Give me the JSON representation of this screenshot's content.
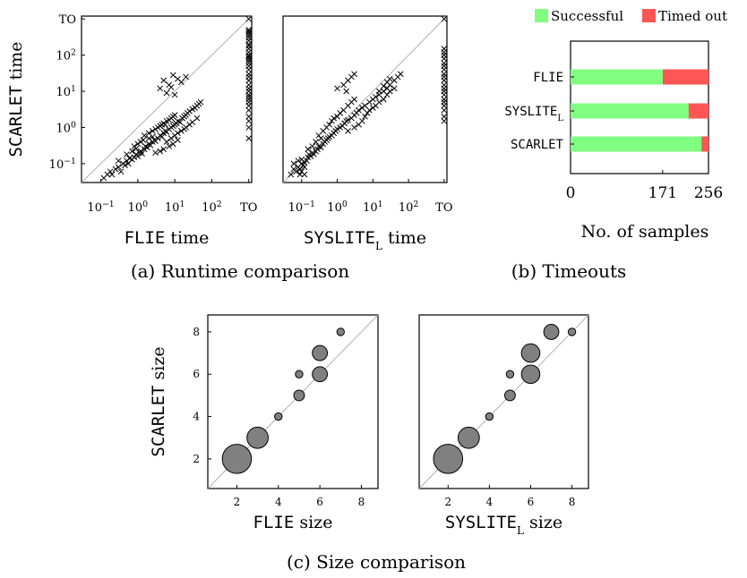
{
  "caption_a": "(a) Runtime comparison",
  "caption_b": "(b) Timeouts",
  "caption_c": "(c) Size comparison",
  "chart_data": [
    {
      "id": "runtime_flie",
      "type": "scatter",
      "xscale": "log",
      "yscale": "log",
      "xlim": [
        0.03,
        1200
      ],
      "ylim": [
        0.03,
        1200
      ],
      "xticks": [
        0.1,
        1,
        10,
        100,
        1000
      ],
      "xtick_labels": [
        "10^-1",
        "10^0",
        "10^1",
        "10^2",
        "TO"
      ],
      "yticks": [
        0.1,
        1,
        10,
        100,
        1000
      ],
      "ytick_labels": [
        "10^-1",
        "10^0",
        "10^1",
        "10^2",
        "TO"
      ],
      "xlabel": {
        "mono": "FLIE",
        "sub": "",
        "rest": " time"
      },
      "ylabel": {
        "mono": "SCARLET",
        "sub": "",
        "rest": " time"
      },
      "diagonal": true,
      "marker": "x",
      "points": [
        [
          0.12,
          0.04
        ],
        [
          0.15,
          0.05
        ],
        [
          0.18,
          0.06
        ],
        [
          0.2,
          0.05
        ],
        [
          0.25,
          0.07
        ],
        [
          0.3,
          0.08
        ],
        [
          0.35,
          0.06
        ],
        [
          0.4,
          0.1
        ],
        [
          0.45,
          0.09
        ],
        [
          0.5,
          0.12
        ],
        [
          0.55,
          0.1
        ],
        [
          0.6,
          0.14
        ],
        [
          0.7,
          0.13
        ],
        [
          0.8,
          0.15
        ],
        [
          0.9,
          0.18
        ],
        [
          1.0,
          0.16
        ],
        [
          1.1,
          0.2
        ],
        [
          1.2,
          0.22
        ],
        [
          1.3,
          0.19
        ],
        [
          1.5,
          0.25
        ],
        [
          1.6,
          0.3
        ],
        [
          1.8,
          0.28
        ],
        [
          2.0,
          0.35
        ],
        [
          2.2,
          0.32
        ],
        [
          2.5,
          0.4
        ],
        [
          2.8,
          0.45
        ],
        [
          3.0,
          0.42
        ],
        [
          3.5,
          0.5
        ],
        [
          4.0,
          0.6
        ],
        [
          4.5,
          0.55
        ],
        [
          5.0,
          0.7
        ],
        [
          5.5,
          0.8
        ],
        [
          6.0,
          0.75
        ],
        [
          7.0,
          0.9
        ],
        [
          8.0,
          1.0
        ],
        [
          9.0,
          1.1
        ],
        [
          10,
          1.2
        ],
        [
          11,
          1.3
        ],
        [
          12,
          1.5
        ],
        [
          14,
          1.4
        ],
        [
          16,
          1.8
        ],
        [
          18,
          2.0
        ],
        [
          20,
          2.2
        ],
        [
          22,
          2.5
        ],
        [
          25,
          2.8
        ],
        [
          30,
          3.2
        ],
        [
          35,
          3.5
        ],
        [
          40,
          4.0
        ],
        [
          45,
          4.5
        ],
        [
          50,
          5.0
        ],
        [
          1.5,
          0.6
        ],
        [
          2.0,
          0.7
        ],
        [
          2.5,
          0.8
        ],
        [
          3.0,
          0.9
        ],
        [
          3.5,
          1.0
        ],
        [
          4.0,
          1.1
        ],
        [
          4.5,
          1.2
        ],
        [
          5.0,
          1.3
        ],
        [
          5.5,
          1.2
        ],
        [
          6.0,
          1.5
        ],
        [
          7.0,
          1.6
        ],
        [
          8.0,
          1.8
        ],
        [
          9.0,
          2.0
        ],
        [
          10,
          2.2
        ],
        [
          0.8,
          0.3
        ],
        [
          1.0,
          0.35
        ],
        [
          1.2,
          0.4
        ],
        [
          1.4,
          0.45
        ],
        [
          2.0,
          0.5
        ],
        [
          2.5,
          0.55
        ],
        [
          6.0,
          0.4
        ],
        [
          8.0,
          0.5
        ],
        [
          10,
          0.6
        ],
        [
          12,
          0.7
        ],
        [
          15,
          0.8
        ],
        [
          18,
          0.9
        ],
        [
          20,
          1.0
        ],
        [
          25,
          1.2
        ],
        [
          30,
          1.4
        ],
        [
          40,
          1.8
        ],
        [
          5.0,
          0.25
        ],
        [
          7.0,
          0.3
        ],
        [
          9.0,
          0.35
        ],
        [
          12,
          0.45
        ],
        [
          3.0,
          0.2
        ],
        [
          4.0,
          0.22
        ],
        [
          0.3,
          0.12
        ],
        [
          0.5,
          0.18
        ],
        [
          0.7,
          0.22
        ],
        [
          0.9,
          0.26
        ],
        [
          5.0,
          20
        ],
        [
          7.0,
          15
        ],
        [
          9.0,
          28
        ],
        [
          12,
          22
        ],
        [
          4.0,
          12
        ],
        [
          6.0,
          9
        ],
        [
          8.0,
          13
        ],
        [
          15,
          18
        ],
        [
          20,
          25
        ],
        [
          10,
          8
        ],
        [
          1000,
          0.5
        ],
        [
          1000,
          1.0
        ],
        [
          1000,
          1.5
        ],
        [
          1000,
          2.0
        ],
        [
          1000,
          3.0
        ],
        [
          1000,
          4.0
        ],
        [
          1000,
          5.0
        ],
        [
          1000,
          6.0
        ],
        [
          1000,
          7.0
        ],
        [
          1000,
          8.0
        ],
        [
          1000,
          10
        ],
        [
          1000,
          12
        ],
        [
          1000,
          15
        ],
        [
          1000,
          20
        ],
        [
          1000,
          25
        ],
        [
          1000,
          30
        ],
        [
          1000,
          40
        ],
        [
          1000,
          50
        ],
        [
          1000,
          60
        ],
        [
          1000,
          70
        ],
        [
          1000,
          80
        ],
        [
          1000,
          90
        ],
        [
          1000,
          100
        ],
        [
          1000,
          120
        ],
        [
          1000,
          150
        ],
        [
          1000,
          180
        ],
        [
          1000,
          200
        ],
        [
          1000,
          250
        ],
        [
          1000,
          300
        ],
        [
          1000,
          350
        ],
        [
          1000,
          400
        ],
        [
          1000,
          450
        ],
        [
          1000,
          500
        ],
        [
          1000,
          1000
        ]
      ]
    },
    {
      "id": "runtime_syslite",
      "type": "scatter",
      "xscale": "log",
      "yscale": "log",
      "xlim": [
        0.03,
        1200
      ],
      "ylim": [
        0.03,
        1200
      ],
      "xticks": [
        0.1,
        1,
        10,
        100,
        1000
      ],
      "xtick_labels": [
        "10^-1",
        "10^0",
        "10^1",
        "10^2",
        "TO"
      ],
      "yticks": [],
      "ytick_labels": [],
      "xlabel": {
        "mono": "SYSLITE",
        "sub": "L",
        "rest": " time"
      },
      "ylabel": null,
      "diagonal": true,
      "marker": "x",
      "points": [
        [
          0.05,
          0.05
        ],
        [
          0.06,
          0.07
        ],
        [
          0.07,
          0.06
        ],
        [
          0.08,
          0.08
        ],
        [
          0.09,
          0.07
        ],
        [
          0.1,
          0.1
        ],
        [
          0.11,
          0.09
        ],
        [
          0.12,
          0.11
        ],
        [
          0.06,
          0.1
        ],
        [
          0.08,
          0.12
        ],
        [
          0.1,
          0.13
        ],
        [
          0.12,
          0.08
        ],
        [
          0.14,
          0.12
        ],
        [
          0.15,
          0.15
        ],
        [
          0.16,
          0.18
        ],
        [
          0.18,
          0.16
        ],
        [
          0.2,
          0.2
        ],
        [
          0.22,
          0.18
        ],
        [
          0.25,
          0.22
        ],
        [
          0.28,
          0.25
        ],
        [
          0.3,
          0.3
        ],
        [
          0.35,
          0.28
        ],
        [
          0.4,
          0.35
        ],
        [
          0.45,
          0.4
        ],
        [
          0.5,
          0.45
        ],
        [
          0.55,
          0.5
        ],
        [
          0.6,
          0.55
        ],
        [
          0.7,
          0.6
        ],
        [
          0.8,
          0.7
        ],
        [
          0.9,
          0.8
        ],
        [
          1.0,
          0.9
        ],
        [
          1.2,
          1.0
        ],
        [
          1.4,
          1.1
        ],
        [
          1.6,
          1.3
        ],
        [
          1.8,
          1.5
        ],
        [
          2.0,
          1.6
        ],
        [
          2.5,
          1.8
        ],
        [
          3.0,
          2.2
        ],
        [
          3.5,
          2.5
        ],
        [
          4.0,
          3.0
        ],
        [
          0.5,
          1.0
        ],
        [
          0.6,
          1.2
        ],
        [
          0.7,
          1.5
        ],
        [
          0.8,
          1.8
        ],
        [
          1.0,
          2.0
        ],
        [
          1.2,
          2.5
        ],
        [
          1.5,
          3.0
        ],
        [
          2.0,
          4.0
        ],
        [
          2.5,
          5.0
        ],
        [
          3.0,
          6.0
        ],
        [
          0.3,
          0.6
        ],
        [
          0.4,
          0.8
        ],
        [
          0.35,
          0.5
        ],
        [
          0.25,
          0.4
        ],
        [
          0.2,
          0.3
        ],
        [
          0.15,
          0.25
        ],
        [
          2.0,
          0.8
        ],
        [
          3.0,
          1.0
        ],
        [
          4.0,
          1.2
        ],
        [
          5.0,
          1.5
        ],
        [
          6.0,
          2.0
        ],
        [
          7.0,
          2.5
        ],
        [
          8.0,
          3.0
        ],
        [
          10,
          3.5
        ],
        [
          12,
          4.0
        ],
        [
          15,
          5.0
        ],
        [
          5.0,
          3.5
        ],
        [
          6.0,
          4.0
        ],
        [
          8.0,
          5.0
        ],
        [
          10,
          6.0
        ],
        [
          12,
          7.0
        ],
        [
          15,
          8.0
        ],
        [
          20,
          10
        ],
        [
          25,
          12
        ],
        [
          30,
          15
        ],
        [
          40,
          20
        ],
        [
          50,
          25
        ],
        [
          60,
          30
        ],
        [
          20,
          6.0
        ],
        [
          25,
          8.0
        ],
        [
          30,
          10
        ],
        [
          40,
          12
        ],
        [
          15,
          10
        ],
        [
          20,
          14
        ],
        [
          25,
          18
        ],
        [
          30,
          22
        ],
        [
          1.5,
          15
        ],
        [
          2.0,
          20
        ],
        [
          2.5,
          25
        ],
        [
          3.0,
          30
        ],
        [
          1.0,
          12
        ],
        [
          1.8,
          10
        ],
        [
          0.1,
          0.06
        ],
        [
          0.12,
          0.05
        ],
        [
          0.09,
          0.05
        ],
        [
          1000,
          1.5
        ],
        [
          1000,
          2.0
        ],
        [
          1000,
          3.0
        ],
        [
          1000,
          4.0
        ],
        [
          1000,
          5.0
        ],
        [
          1000,
          6.0
        ],
        [
          1000,
          8.0
        ],
        [
          1000,
          10
        ],
        [
          1000,
          12
        ],
        [
          1000,
          15
        ],
        [
          1000,
          20
        ],
        [
          1000,
          25
        ],
        [
          1000,
          30
        ],
        [
          1000,
          40
        ],
        [
          1000,
          50
        ],
        [
          1000,
          60
        ],
        [
          1000,
          80
        ],
        [
          1000,
          100
        ],
        [
          1000,
          120
        ],
        [
          1000,
          150
        ],
        [
          1000,
          1000
        ]
      ]
    },
    {
      "id": "timeouts",
      "type": "bar",
      "orientation": "horizontal",
      "stacked": true,
      "categories": [
        "FLIE",
        "SYSLITE",
        "SCARLET"
      ],
      "category_subs": [
        "",
        "L",
        ""
      ],
      "series": [
        {
          "name": "Successful",
          "color": "#80ff80",
          "values": [
            171,
            219,
            243
          ]
        },
        {
          "name": "Timed out",
          "color": "#ff5555",
          "values": [
            85,
            37,
            13
          ]
        }
      ],
      "xlim": [
        0,
        256
      ],
      "xticks": [
        0,
        171,
        256
      ],
      "xlabel": "No. of samples",
      "legend": "top"
    },
    {
      "id": "size_flie",
      "type": "scatter",
      "marker": "bubble",
      "xlim": [
        0.6,
        8.8
      ],
      "ylim": [
        0.6,
        8.8
      ],
      "xticks": [
        2,
        4,
        6,
        8
      ],
      "yticks": [
        2,
        4,
        6,
        8
      ],
      "xlabel": {
        "mono": "FLIE",
        "sub": "",
        "rest": " size"
      },
      "ylabel": {
        "mono": "SCARLET",
        "sub": "",
        "rest": " size"
      },
      "diagonal": true,
      "points": [
        {
          "x": 2,
          "y": 2,
          "count": 15
        },
        {
          "x": 3,
          "y": 3,
          "count": 8
        },
        {
          "x": 4,
          "y": 4,
          "count": 1
        },
        {
          "x": 5,
          "y": 5,
          "count": 2
        },
        {
          "x": 5,
          "y": 6,
          "count": 1
        },
        {
          "x": 6,
          "y": 6,
          "count": 4
        },
        {
          "x": 6,
          "y": 7,
          "count": 4
        },
        {
          "x": 7,
          "y": 8,
          "count": 1
        }
      ]
    },
    {
      "id": "size_syslite",
      "type": "scatter",
      "marker": "bubble",
      "xlim": [
        0.6,
        8.8
      ],
      "ylim": [
        0.6,
        8.8
      ],
      "xticks": [
        2,
        4,
        6,
        8
      ],
      "yticks": [],
      "xlabel": {
        "mono": "SYSLITE",
        "sub": "L",
        "rest": " size"
      },
      "ylabel": null,
      "diagonal": true,
      "points": [
        {
          "x": 2,
          "y": 2,
          "count": 15
        },
        {
          "x": 3,
          "y": 3,
          "count": 8
        },
        {
          "x": 4,
          "y": 4,
          "count": 1
        },
        {
          "x": 5,
          "y": 5,
          "count": 2
        },
        {
          "x": 5,
          "y": 6,
          "count": 1
        },
        {
          "x": 6,
          "y": 6,
          "count": 6
        },
        {
          "x": 6,
          "y": 7,
          "count": 6
        },
        {
          "x": 7,
          "y": 8,
          "count": 4
        },
        {
          "x": 8,
          "y": 8,
          "count": 1
        }
      ]
    }
  ]
}
